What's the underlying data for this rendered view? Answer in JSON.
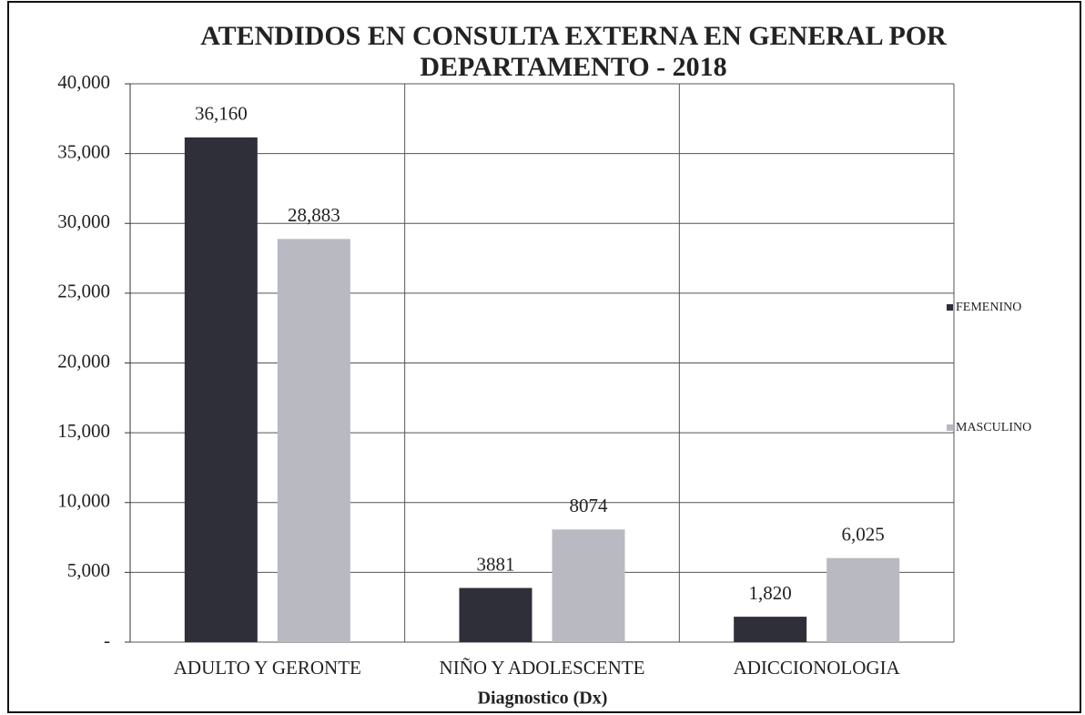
{
  "chart_data": {
    "type": "bar",
    "title": "ATENDIDOS EN CONSULTA EXTERNA EN GENERAL POR DEPARTAMENTO - 2018",
    "x_label": "Diagnostico (Dx)",
    "categories": [
      "ADULTO Y GERONTE",
      "NIÑO Y ADOLESCENTE",
      "ADICCIONOLOGIA"
    ],
    "series": [
      {
        "name": "FEMENINO",
        "color": "#2f2f3a",
        "values": [
          36160,
          3881,
          1820
        ],
        "value_labels": [
          "36,160",
          "3881",
          "1,820"
        ]
      },
      {
        "name": "MASCULINO",
        "color": "#b9b9c2",
        "values": [
          28883,
          8074,
          6025
        ],
        "value_labels": [
          "28,883",
          "8074",
          "6,025"
        ]
      }
    ],
    "ylim": [
      0,
      40000
    ],
    "yticks": [
      {
        "value": 0,
        "label": "-"
      },
      {
        "value": 5000,
        "label": "5,000"
      },
      {
        "value": 10000,
        "label": "10,000"
      },
      {
        "value": 15000,
        "label": "15,000"
      },
      {
        "value": 20000,
        "label": "20,000"
      },
      {
        "value": 25000,
        "label": "25,000"
      },
      {
        "value": 30000,
        "label": "30,000"
      },
      {
        "value": 35000,
        "label": "35,000"
      },
      {
        "value": 40000,
        "label": "40,000"
      }
    ],
    "grid": true,
    "legend": "right"
  }
}
